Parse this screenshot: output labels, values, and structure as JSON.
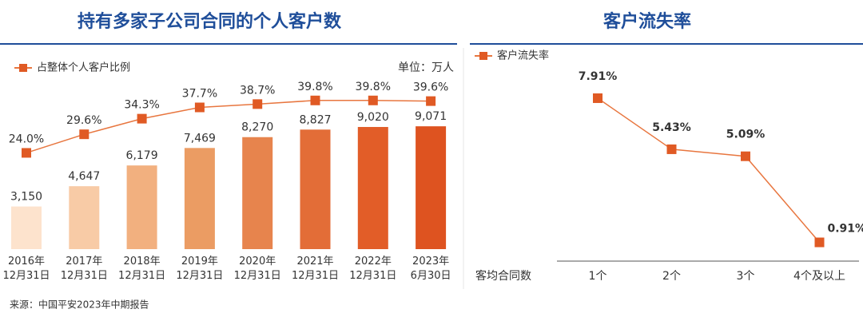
{
  "chart_data": [
    {
      "type": "bar",
      "title": "持有多家子公司合同的个人客户数",
      "unit_label": "单位：万人",
      "categories": [
        "2016年\n12月31日",
        "2017年\n12月31日",
        "2018年\n12月31日",
        "2019年\n12月31日",
        "2020年\n12月31日",
        "2021年\n12月31日",
        "2022年\n12月31日",
        "2023年\n6月30日"
      ],
      "ylim": [
        0,
        12500
      ],
      "y2lim": [
        -5,
        46
      ],
      "series": [
        {
          "type": "bar",
          "colors": [
            "#fde3cd",
            "#f8cba6",
            "#f2b07f",
            "#eb9c63",
            "#e7844d",
            "#e36d37",
            "#e25d28",
            "#de5320"
          ],
          "values": [
            3150,
            4647,
            6179,
            7469,
            8270,
            8827,
            9020,
            9071
          ],
          "value_labels": [
            "3,150",
            "4,647",
            "6,179",
            "7,469",
            "8,270",
            "8,827",
            "9,020",
            "9,071"
          ]
        },
        {
          "type": "line",
          "axis": "y2",
          "name": "占整体个人客户比例",
          "color": "#e8763f",
          "marker_color": "#e05a24",
          "values": [
            24.0,
            29.6,
            34.3,
            37.7,
            38.7,
            39.8,
            39.8,
            39.6
          ],
          "value_labels": [
            "24.0%",
            "29.6%",
            "34.3%",
            "37.7%",
            "38.7%",
            "39.8%",
            "39.8%",
            "39.6%"
          ]
        }
      ]
    },
    {
      "type": "line",
      "title": "客户流失率",
      "xlabel": "客均合同数",
      "categories": [
        "1个",
        "2个",
        "3个",
        "4个及以上"
      ],
      "ylim": [
        0,
        8.8
      ],
      "series": [
        {
          "name": "客户流失率",
          "color": "#e8763f",
          "marker_color": "#e05a24",
          "values": [
            7.91,
            5.43,
            5.09,
            0.91
          ],
          "value_labels": [
            "7.91%",
            "5.43%",
            "5.09%",
            "0.91%"
          ]
        }
      ]
    }
  ],
  "source": "来源：中国平安2023年中期报告"
}
